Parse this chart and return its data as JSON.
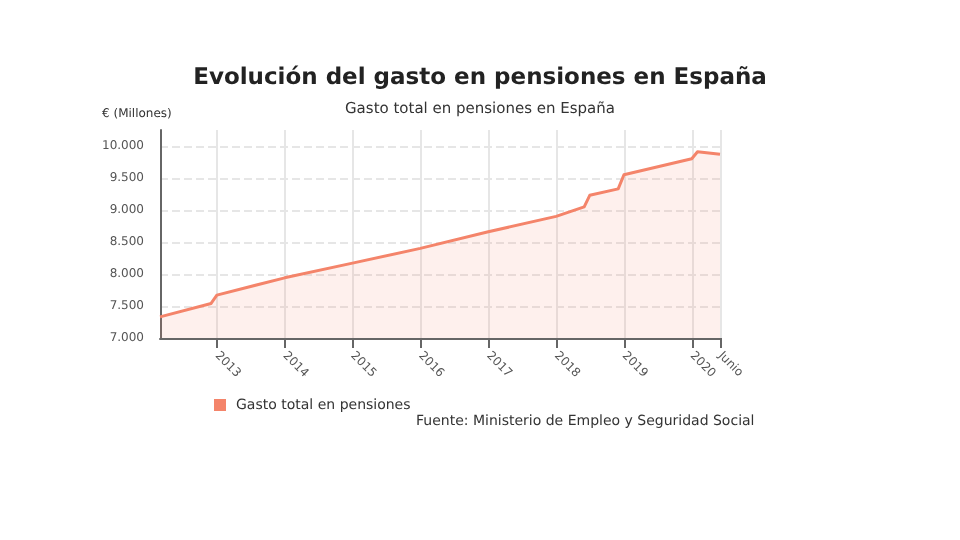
{
  "chart_data": {
    "type": "area",
    "title": "Evolución del gasto en pensiones en España",
    "subtitle": "Gasto total en pensiones en España",
    "ylabel": "€ (Millones)",
    "x": [
      "2012-03",
      "2012-12",
      "2013-01",
      "2014-01",
      "2015-01",
      "2016-01",
      "2017-01",
      "2018-01",
      "2018-06",
      "2018-07",
      "2018-12",
      "2019-01",
      "2020-01",
      "2020-02",
      "2020-06"
    ],
    "series": [
      {
        "name": "Gasto total en pensiones",
        "color": "#f4846a",
        "values": [
          7330,
          7540,
          7670,
          7940,
          8170,
          8400,
          8660,
          8900,
          9050,
          9230,
          9330,
          9550,
          9800,
          9910,
          9870
        ]
      }
    ],
    "xlim": [
      "2012-03",
      "2020-06"
    ],
    "xticks": [
      "2013",
      "2014",
      "2015",
      "2016",
      "2017",
      "2018",
      "2019",
      "2020",
      {
        "value": "2020-06",
        "label": "Junio"
      }
    ],
    "ylim": [
      7000,
      10250
    ],
    "yticks": [
      {
        "value": 7000,
        "label": "7.000"
      },
      {
        "value": 7500,
        "label": "7.500"
      },
      {
        "value": 8000,
        "label": "8.000"
      },
      {
        "value": 8500,
        "label": "8.500"
      },
      {
        "value": 9000,
        "label": "9.000"
      },
      {
        "value": 9500,
        "label": "9.500"
      },
      {
        "value": 10000,
        "label": "10.000"
      }
    ],
    "grid": true,
    "legend": "bottom",
    "marker": "none",
    "line_style": "solid",
    "annotations": [
      "Fuente: Ministerio de Empleo y Seguridad Social"
    ]
  }
}
